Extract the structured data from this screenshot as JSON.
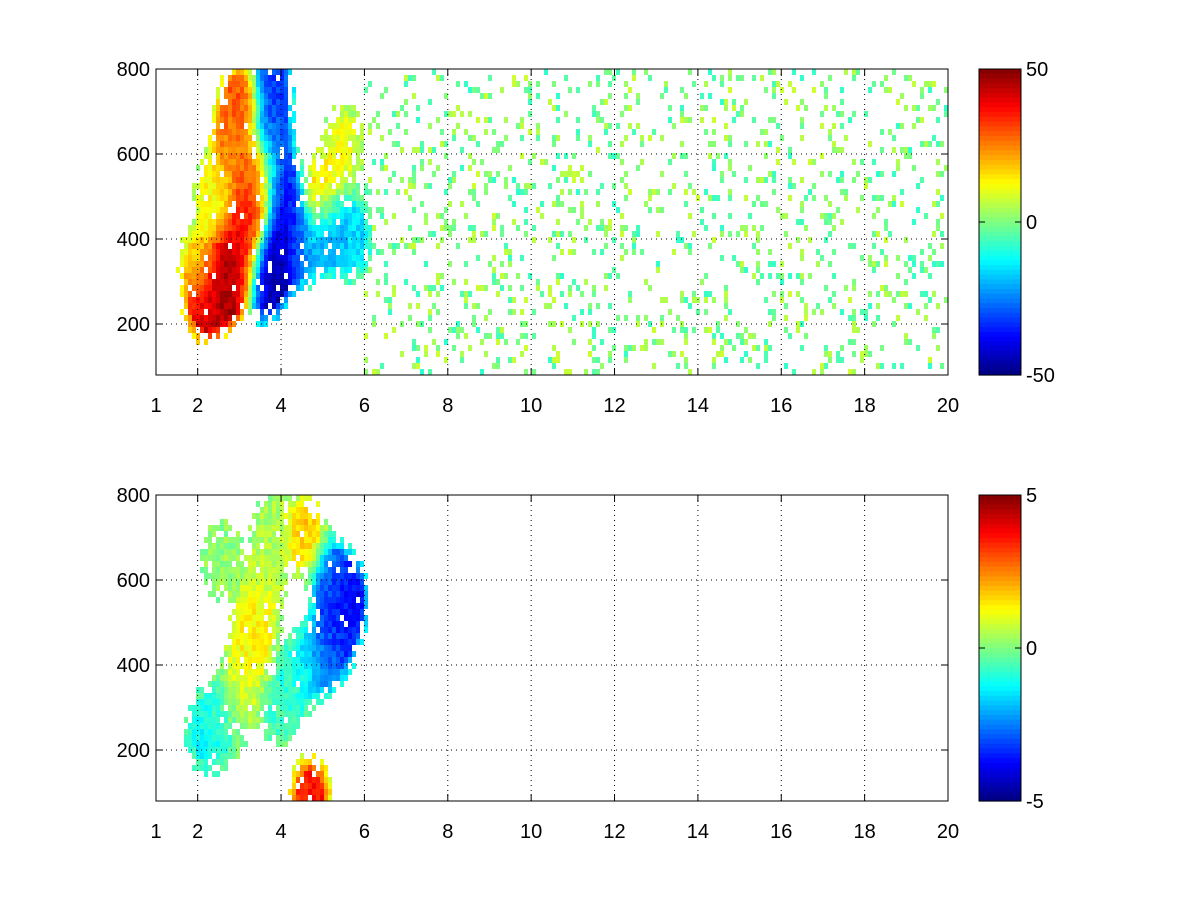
{
  "chart_data": [
    {
      "type": "heatmap",
      "title": "",
      "xlabel": "",
      "ylabel": "",
      "xlim": [
        1,
        20
      ],
      "ylim": [
        80,
        800
      ],
      "x_ticks": [
        1,
        2,
        4,
        6,
        8,
        10,
        12,
        14,
        16,
        18,
        20
      ],
      "y_ticks": [
        200,
        400,
        600,
        800
      ],
      "grid": true,
      "colormap": "jet",
      "colorbar": {
        "range": [
          -50,
          50
        ],
        "ticks": [
          50,
          0,
          -50
        ],
        "placement": "right"
      },
      "features": [
        {
          "x": 2.2,
          "y": 250,
          "value": 42
        },
        {
          "x": 2.6,
          "y": 290,
          "value": 48
        },
        {
          "x": 3.0,
          "y": 320,
          "value": 45
        },
        {
          "x": 3.1,
          "y": 400,
          "value": 38
        },
        {
          "x": 3.3,
          "y": 480,
          "value": 35
        },
        {
          "x": 3.4,
          "y": 560,
          "value": 28
        },
        {
          "x": 2.8,
          "y": 620,
          "value": 25
        },
        {
          "x": 3.0,
          "y": 720,
          "value": 30
        },
        {
          "x": 3.6,
          "y": 300,
          "value": -45
        },
        {
          "x": 3.9,
          "y": 350,
          "value": -48
        },
        {
          "x": 4.1,
          "y": 420,
          "value": -40
        },
        {
          "x": 4.0,
          "y": 520,
          "value": -35
        },
        {
          "x": 3.8,
          "y": 640,
          "value": -30
        },
        {
          "x": 3.8,
          "y": 760,
          "value": -32
        },
        {
          "x": 4.6,
          "y": 380,
          "value": -20
        },
        {
          "x": 5.2,
          "y": 420,
          "value": -25
        },
        {
          "x": 5.7,
          "y": 400,
          "value": -15
        },
        {
          "x": 2.0,
          "y": 330,
          "value": 15
        },
        {
          "x": 2.4,
          "y": 500,
          "value": 12
        },
        {
          "x": 5.0,
          "y": 500,
          "value": 18
        },
        {
          "x": 5.5,
          "y": 620,
          "value": 10
        }
      ],
      "noise_x_range": [
        6,
        20
      ],
      "noise_amplitude": 8
    },
    {
      "type": "heatmap",
      "title": "",
      "xlabel": "",
      "ylabel": "",
      "xlim": [
        1,
        20
      ],
      "ylim": [
        80,
        800
      ],
      "x_ticks": [
        1,
        2,
        4,
        6,
        8,
        10,
        12,
        14,
        16,
        18,
        20
      ],
      "y_ticks": [
        200,
        400,
        600,
        800
      ],
      "grid": true,
      "colormap": "jet",
      "colorbar": {
        "range": [
          -5,
          5
        ],
        "ticks": [
          5,
          0,
          -5
        ],
        "placement": "right"
      },
      "features": [
        {
          "x": 2.2,
          "y": 240,
          "value": -1.2
        },
        {
          "x": 2.6,
          "y": 270,
          "value": -0.8
        },
        {
          "x": 3.0,
          "y": 320,
          "value": 0.8
        },
        {
          "x": 3.2,
          "y": 420,
          "value": 1.2
        },
        {
          "x": 3.4,
          "y": 500,
          "value": 1.5
        },
        {
          "x": 3.6,
          "y": 600,
          "value": 0.6
        },
        {
          "x": 3.8,
          "y": 720,
          "value": 0.4
        },
        {
          "x": 2.6,
          "y": 640,
          "value": 0.2
        },
        {
          "x": 4.0,
          "y": 300,
          "value": -0.6
        },
        {
          "x": 4.4,
          "y": 380,
          "value": -1.0
        },
        {
          "x": 5.0,
          "y": 420,
          "value": -2.5
        },
        {
          "x": 5.4,
          "y": 480,
          "value": -3.5
        },
        {
          "x": 5.6,
          "y": 560,
          "value": -3.8
        },
        {
          "x": 5.2,
          "y": 600,
          "value": -2.8
        },
        {
          "x": 4.6,
          "y": 700,
          "value": 1.8
        },
        {
          "x": 4.7,
          "y": 90,
          "value": 3.5
        }
      ]
    }
  ]
}
